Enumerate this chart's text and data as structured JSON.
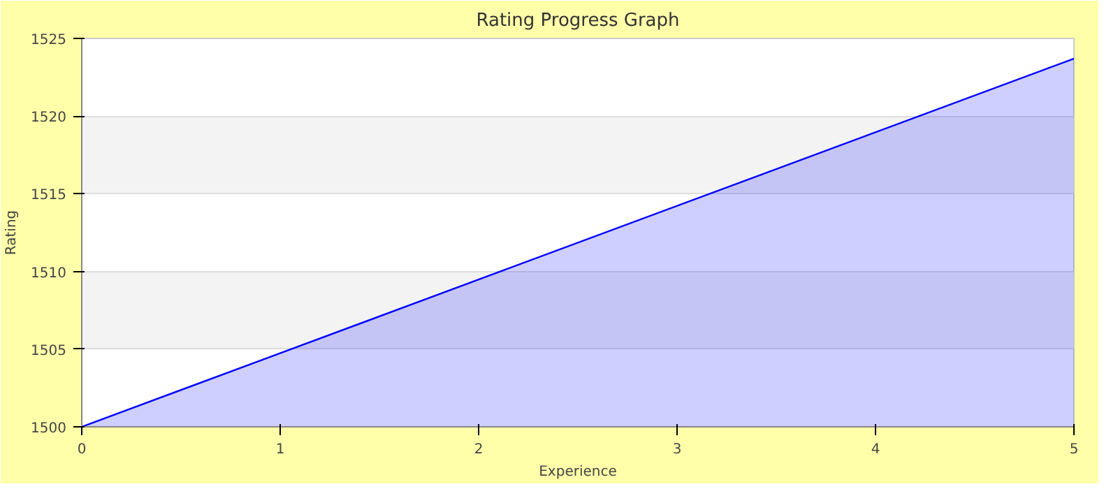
{
  "chart_data": {
    "type": "area",
    "title": "Rating Progress Graph",
    "xlabel": "Experience",
    "ylabel": "Rating",
    "x": [
      0,
      5
    ],
    "series": [
      {
        "color": "#0000ff",
        "values": [
          1500,
          1523.7
        ]
      }
    ],
    "xlim": [
      0,
      5
    ],
    "xticks": [
      0,
      1,
      2,
      3,
      4,
      5
    ],
    "ylim": [
      1500,
      1525
    ],
    "yticks": [
      1500,
      1505,
      1510,
      1515,
      1520,
      1525
    ],
    "grid": "y"
  }
}
